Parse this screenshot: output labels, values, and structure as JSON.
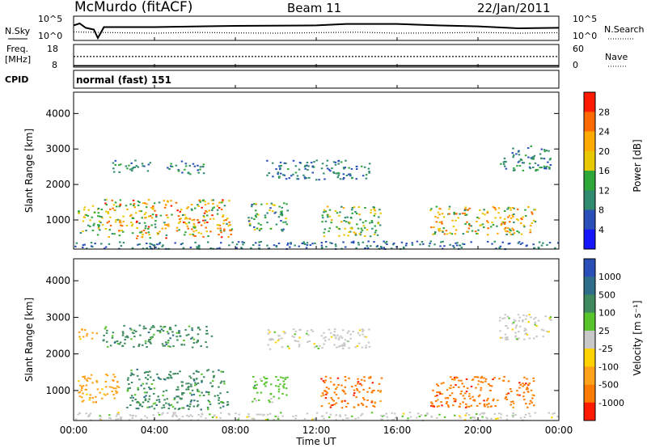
{
  "chart_data": [
    {
      "type": "line",
      "header": {
        "site": "McMurdo (fitACF)",
        "beam": "Beam 11",
        "date": "22/Jan/2011"
      },
      "panel": "noise",
      "left_label": "N.Sky",
      "right_label": "N.Search",
      "left_ticks": [
        "10^5",
        "10^0"
      ],
      "right_ticks": [
        "10^5",
        "10^0"
      ],
      "series": [
        {
          "name": "N.Sky",
          "x": [
            0.0,
            0.3,
            0.6,
            1.0,
            1.2,
            1.5,
            4.0,
            8.0,
            12.0,
            13.5,
            16.0,
            18.0,
            20.0,
            22.0,
            24.0
          ],
          "y": [
            0.62,
            0.7,
            0.52,
            0.45,
            0.1,
            0.55,
            0.55,
            0.6,
            0.62,
            0.68,
            0.68,
            0.62,
            0.58,
            0.5,
            0.52
          ]
        },
        {
          "name": "N.Search",
          "x": [
            0.0,
            2.0,
            4.0,
            6.0,
            8.0,
            10.0,
            12.0,
            14.0,
            16.0,
            18.0,
            20.0,
            22.0,
            24.0
          ],
          "y": [
            0.35,
            0.32,
            0.3,
            0.33,
            0.31,
            0.3,
            0.32,
            0.34,
            0.3,
            0.31,
            0.33,
            0.3,
            0.32
          ]
        }
      ]
    },
    {
      "type": "line",
      "panel": "frequency",
      "left_label_1": "Freq.",
      "left_label_2": "[MHz]",
      "left_ticks": [
        "18",
        "8"
      ],
      "right_label": "Nave",
      "right_ticks": [
        "60",
        "0"
      ],
      "series": [
        {
          "name": "Freq.",
          "x": [
            0.0,
            1.0,
            1.05,
            24.0
          ],
          "y": [
            8.3,
            8.3,
            8.3,
            8.3
          ]
        },
        {
          "name": "Nave",
          "x": [
            0.0,
            24.0
          ],
          "y": [
            28,
            28
          ]
        }
      ]
    },
    {
      "type": "line",
      "panel": "cpid",
      "label": "CPID",
      "value": "normal (fast) 151"
    },
    {
      "type": "heatmap",
      "panel": "power",
      "ylabel": "Slant Range [km]",
      "yticks": [
        1000,
        2000,
        3000,
        4000
      ],
      "ylim": [
        180,
        4600
      ],
      "colorbar": {
        "label": "Power [dB]",
        "ticks": [
          "28",
          "24",
          "20",
          "16",
          "12",
          "8",
          "4"
        ],
        "colors": [
          "#ff1a00",
          "#ff6a00",
          "#ffaa00",
          "#e8c800",
          "#2fa83a",
          "#2f8a6e",
          "#2a4fb8",
          "#1515ff"
        ]
      },
      "blobs": [
        {
          "t0": 0.2,
          "t1": 1.4,
          "r0": 600,
          "r1": 1500,
          "level": 0.55
        },
        {
          "t0": 1.5,
          "t1": 7.8,
          "r0": 500,
          "r1": 1600,
          "level": 0.75
        },
        {
          "t0": 1.8,
          "t1": 3.8,
          "r0": 2350,
          "r1": 2700,
          "level": 0.35
        },
        {
          "t0": 4.6,
          "t1": 6.5,
          "r0": 2300,
          "r1": 2700,
          "level": 0.35
        },
        {
          "t0": 8.6,
          "t1": 10.6,
          "r0": 700,
          "r1": 1500,
          "level": 0.45
        },
        {
          "t0": 9.5,
          "t1": 14.6,
          "r0": 2150,
          "r1": 2700,
          "level": 0.3
        },
        {
          "t0": 12.2,
          "t1": 15.2,
          "r0": 550,
          "r1": 1400,
          "level": 0.55
        },
        {
          "t0": 17.6,
          "t1": 22.8,
          "r0": 600,
          "r1": 1400,
          "level": 0.7
        },
        {
          "t0": 21.0,
          "t1": 23.6,
          "r0": 2400,
          "r1": 3100,
          "level": 0.35
        },
        {
          "t0": 0.0,
          "t1": 24.0,
          "r0": 200,
          "r1": 420,
          "level": 0.25
        }
      ]
    },
    {
      "type": "heatmap",
      "panel": "velocity",
      "ylabel": "Slant Range [km]",
      "yticks": [
        1000,
        2000,
        3000,
        4000
      ],
      "ylim": [
        180,
        4600
      ],
      "colorbar": {
        "label": "Velocity [m s⁻¹]",
        "ticks": [
          "1000",
          "500",
          "100",
          "25",
          "-25",
          "-100",
          "-500",
          "-1000"
        ],
        "colors": [
          "#2a4fb8",
          "#2f6e8a",
          "#3e8a5e",
          "#56c42a",
          "#c8c8c8",
          "#ffd200",
          "#ffa21a",
          "#ff7a00",
          "#ff1a00"
        ]
      },
      "blobs": [
        {
          "t0": 0.2,
          "t1": 2.2,
          "r0": 700,
          "r1": 1500,
          "level": 6
        },
        {
          "t0": 2.6,
          "t1": 7.6,
          "r0": 500,
          "r1": 1600,
          "level": 2
        },
        {
          "t0": 1.4,
          "t1": 6.8,
          "r0": 2200,
          "r1": 2800,
          "level": 2
        },
        {
          "t0": 0.2,
          "t1": 1.2,
          "r0": 2400,
          "r1": 2700,
          "level": 6
        },
        {
          "t0": 8.8,
          "t1": 10.6,
          "r0": 700,
          "r1": 1400,
          "level": 3
        },
        {
          "t0": 9.5,
          "t1": 14.6,
          "r0": 2150,
          "r1": 2700,
          "level": 4
        },
        {
          "t0": 12.2,
          "t1": 15.2,
          "r0": 550,
          "r1": 1400,
          "level": 7
        },
        {
          "t0": 17.6,
          "t1": 22.8,
          "r0": 550,
          "r1": 1400,
          "level": 7
        },
        {
          "t0": 21.0,
          "t1": 23.6,
          "r0": 2400,
          "r1": 3100,
          "level": 4
        },
        {
          "t0": 0.0,
          "t1": 24.0,
          "r0": 200,
          "r1": 420,
          "level": 4
        }
      ]
    }
  ],
  "xaxis": {
    "label": "Time UT",
    "ticks": [
      "00:00",
      "04:00",
      "08:00",
      "12:00",
      "16:00",
      "20:00",
      "00:00"
    ],
    "xlim": [
      0,
      24
    ]
  }
}
